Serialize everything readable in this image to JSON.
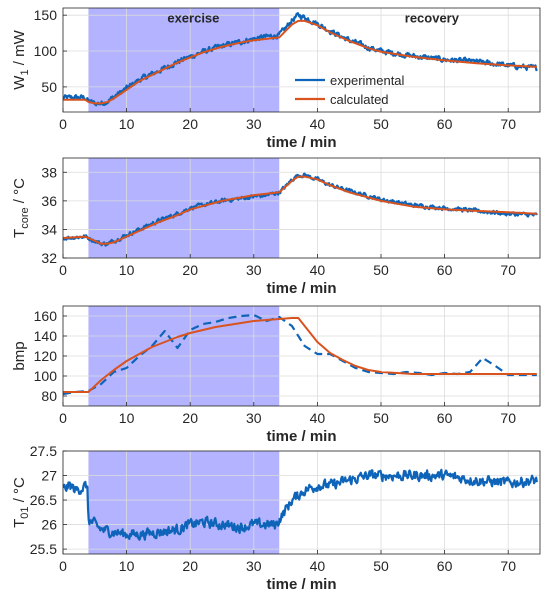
{
  "colors": {
    "experimental": "#0e64b8",
    "calculated": "#d9531e",
    "shade": "#8080ff",
    "grid": "#dcdcdc",
    "axis": "#262626"
  },
  "chart_data": [
    {
      "type": "line",
      "id": "w1",
      "ylabel": "W",
      "ylabel_sub": "1",
      "ylabel_suffix": " / mW",
      "xlabel": "time / min",
      "xlim": [
        0,
        75
      ],
      "ylim": [
        15,
        160
      ],
      "xticks": [
        0,
        10,
        20,
        30,
        40,
        50,
        60,
        70
      ],
      "yticks": [
        50,
        100,
        150
      ],
      "shaded_region": [
        4,
        34
      ],
      "annotations": [
        {
          "text": "exercise",
          "x": 20.5,
          "y": 147
        },
        {
          "text": "recovery",
          "x": 58,
          "y": 147
        }
      ],
      "legend": {
        "position": "center-right",
        "entries": [
          "experimental",
          "calculated"
        ]
      },
      "series": [
        {
          "name": "experimental",
          "style": "noisy",
          "noise": 3.2,
          "x": [
            0,
            3.5,
            4,
            5,
            6,
            7,
            8,
            10,
            12,
            15,
            18,
            20,
            22,
            25,
            28,
            30,
            32,
            33,
            34,
            35,
            36,
            37,
            38,
            40,
            42,
            45,
            48,
            50,
            55,
            60,
            65,
            70,
            74.5
          ],
          "y": [
            35,
            35,
            30,
            27,
            27,
            30,
            36,
            48,
            60,
            72,
            85,
            92,
            99,
            107,
            113,
            117,
            120,
            121,
            122,
            132,
            143,
            150,
            147,
            138,
            128,
            115,
            105,
            100,
            93,
            88,
            85,
            80,
            76
          ]
        },
        {
          "name": "calculated",
          "style": "smooth",
          "x": [
            0,
            3.5,
            4,
            5,
            6,
            7,
            8,
            10,
            12,
            15,
            18,
            20,
            22,
            25,
            28,
            30,
            32,
            34,
            35,
            36,
            37,
            38,
            40,
            42,
            45,
            48,
            50,
            55,
            60,
            65,
            70,
            74.5
          ],
          "y": [
            32,
            32,
            29,
            27,
            27,
            29,
            34,
            46,
            58,
            71,
            84,
            91,
            98,
            106,
            112,
            115,
            117,
            119,
            128,
            137,
            142,
            142,
            136,
            126,
            114,
            104,
            99,
            92,
            87,
            83,
            80,
            78
          ]
        }
      ]
    },
    {
      "type": "line",
      "id": "tcore",
      "ylabel": "T",
      "ylabel_sub": "core",
      "ylabel_suffix": " / °C",
      "xlabel": "time / min",
      "xlim": [
        0,
        75
      ],
      "ylim": [
        32,
        39
      ],
      "xticks": [
        0,
        10,
        20,
        30,
        40,
        50,
        60,
        70
      ],
      "yticks": [
        32,
        34,
        36,
        38
      ],
      "shaded_region": [
        4,
        34
      ],
      "series": [
        {
          "name": "experimental",
          "style": "noisy",
          "noise": 0.12,
          "x": [
            0,
            3.5,
            4,
            5,
            6,
            7,
            8,
            10,
            12,
            15,
            18,
            20,
            25,
            30,
            32,
            33,
            34,
            35,
            36,
            37,
            38,
            40,
            42,
            45,
            50,
            55,
            60,
            65,
            70,
            74.5
          ],
          "y": [
            33.4,
            33.5,
            33.4,
            33.2,
            33.0,
            33.0,
            33.2,
            33.6,
            34.0,
            34.6,
            35.1,
            35.5,
            36.0,
            36.3,
            36.4,
            36.5,
            36.6,
            37.0,
            37.5,
            37.8,
            37.8,
            37.5,
            37.1,
            36.7,
            36.1,
            35.7,
            35.5,
            35.3,
            35.1,
            35.0
          ]
        },
        {
          "name": "calculated",
          "style": "smooth",
          "x": [
            0,
            3.5,
            4,
            5,
            6,
            7,
            8,
            10,
            12,
            15,
            18,
            20,
            25,
            30,
            32,
            34,
            35,
            36,
            37,
            38,
            40,
            42,
            45,
            50,
            55,
            60,
            65,
            70,
            74.5
          ],
          "y": [
            33.4,
            33.5,
            33.4,
            33.2,
            33.0,
            33.0,
            33.1,
            33.5,
            33.9,
            34.5,
            35.0,
            35.4,
            36.0,
            36.4,
            36.5,
            36.6,
            37.0,
            37.4,
            37.7,
            37.7,
            37.5,
            37.1,
            36.6,
            36.0,
            35.6,
            35.4,
            35.3,
            35.2,
            35.1
          ]
        }
      ]
    },
    {
      "type": "line",
      "id": "bmp",
      "ylabel": "bmp",
      "ylabel_sub": "",
      "ylabel_suffix": "",
      "xlabel": "time / min",
      "xlim": [
        0,
        75
      ],
      "ylim": [
        70,
        170
      ],
      "xticks": [
        0,
        10,
        20,
        30,
        40,
        50,
        60,
        70
      ],
      "yticks": [
        80,
        100,
        120,
        140,
        160
      ],
      "shaded_region": [
        4,
        34
      ],
      "series": [
        {
          "name": "experimental",
          "style": "dashed",
          "x": [
            0,
            2,
            4,
            6,
            8,
            10,
            12,
            14,
            16,
            18,
            20,
            22,
            24,
            26,
            28,
            30,
            32,
            34,
            36,
            38,
            40,
            42,
            44,
            46,
            48,
            50,
            52,
            54,
            56,
            58,
            60,
            62,
            64,
            66,
            68,
            70,
            72,
            74.5
          ],
          "y": [
            82,
            84,
            85,
            92,
            104,
            108,
            120,
            130,
            145,
            128,
            146,
            152,
            154,
            158,
            160,
            161,
            155,
            159,
            150,
            130,
            122,
            122,
            115,
            108,
            104,
            103,
            102,
            104,
            103,
            101,
            103,
            102,
            104,
            118,
            110,
            101,
            101,
            101
          ]
        },
        {
          "name": "calculated",
          "style": "smooth",
          "x": [
            0,
            4,
            6,
            8,
            10,
            12,
            14,
            16,
            18,
            20,
            22,
            24,
            26,
            28,
            30,
            32,
            34,
            36,
            37,
            38,
            40,
            42,
            44,
            46,
            48,
            50,
            55,
            60,
            65,
            70,
            74.5
          ],
          "y": [
            84,
            84,
            96,
            106,
            115,
            122,
            129,
            134,
            139,
            143,
            146,
            149,
            151,
            153,
            155,
            156,
            157,
            158,
            158,
            150,
            134,
            123,
            116,
            110,
            106,
            104,
            102,
            102,
            102,
            102,
            102
          ]
        }
      ]
    },
    {
      "type": "line",
      "id": "t01",
      "ylabel": "T",
      "ylabel_sub": "01",
      "ylabel_suffix": " / °C",
      "xlabel": "time / min",
      "xlim": [
        0,
        75
      ],
      "ylim": [
        25.4,
        27.5
      ],
      "xticks": [
        0,
        10,
        20,
        30,
        40,
        50,
        60,
        70
      ],
      "yticks": [
        25.5,
        26,
        26.5,
        27,
        27.5
      ],
      "shaded_region": [
        4,
        34
      ],
      "series": [
        {
          "name": "experimental",
          "style": "noisy",
          "noise": 0.09,
          "x": [
            0,
            1,
            2,
            3,
            3.8,
            4,
            5,
            6,
            8,
            10,
            12,
            15,
            18,
            20,
            22,
            25,
            28,
            30,
            32,
            33.5,
            34,
            35,
            36,
            38,
            40,
            42,
            45,
            48,
            50,
            55,
            60,
            65,
            70,
            74.5
          ],
          "y": [
            26.7,
            26.8,
            26.7,
            26.75,
            26.8,
            26.1,
            26.0,
            25.9,
            25.85,
            25.8,
            25.8,
            25.85,
            25.9,
            26.0,
            26.05,
            26.0,
            25.95,
            26.0,
            26.0,
            26.0,
            26.1,
            26.3,
            26.5,
            26.7,
            26.8,
            26.8,
            26.9,
            27.0,
            27.0,
            27.0,
            27.0,
            26.9,
            26.85,
            26.9
          ]
        }
      ]
    }
  ]
}
